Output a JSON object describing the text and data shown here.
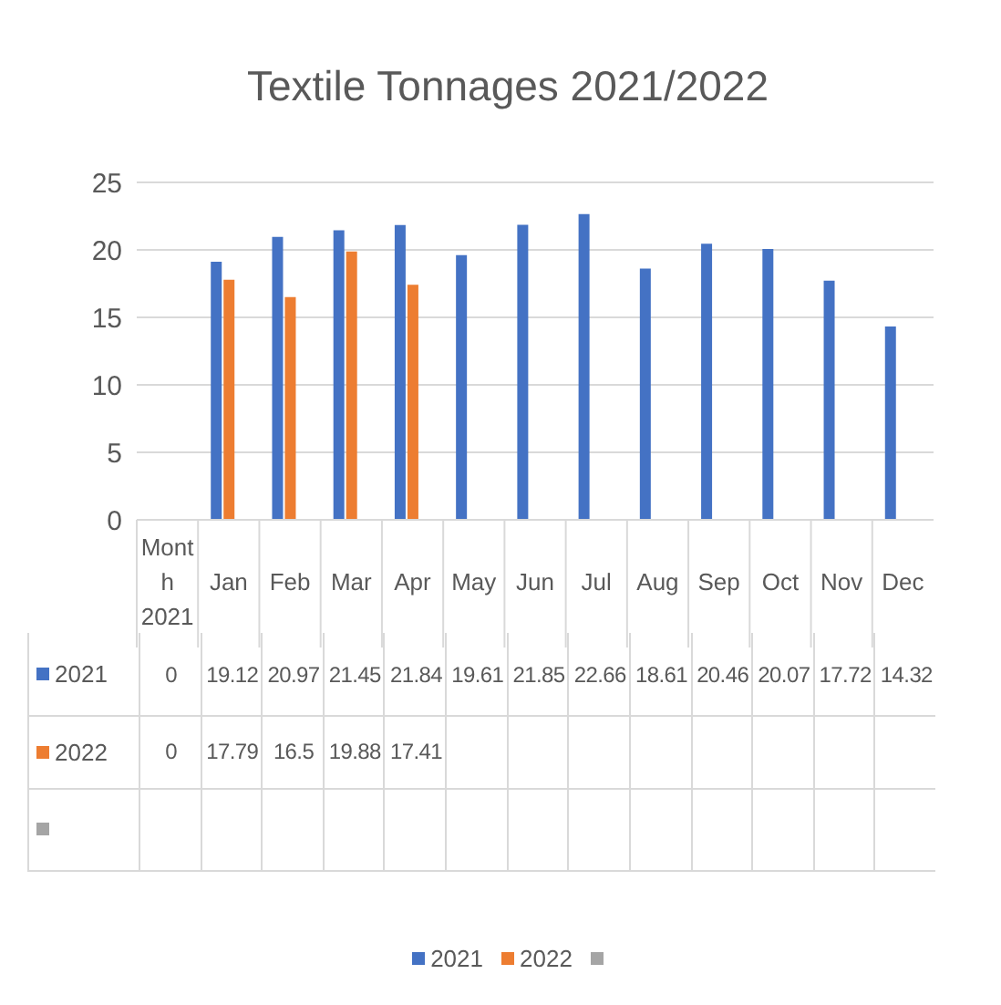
{
  "chart_data": {
    "type": "bar",
    "title": "Textile Tonnages 2021/2022",
    "categories": [
      "Month 2021",
      "Jan",
      "Feb",
      "Mar",
      "Apr",
      "May",
      "Jun",
      "Jul",
      "Aug",
      "Sep",
      "Oct",
      "Nov",
      "Dec"
    ],
    "series": [
      {
        "name": "2021",
        "color": "#4472c4",
        "values": [
          0,
          19.12,
          20.97,
          21.45,
          21.84,
          19.61,
          21.85,
          22.66,
          18.61,
          20.46,
          20.07,
          17.72,
          14.32
        ]
      },
      {
        "name": "2022",
        "color": "#ed7d31",
        "values": [
          0,
          17.79,
          16.5,
          19.88,
          17.41,
          null,
          null,
          null,
          null,
          null,
          null,
          null,
          null
        ]
      },
      {
        "color": "#a5a5a5",
        "values": [
          null,
          null,
          null,
          null,
          null,
          null,
          null,
          null,
          null,
          null,
          null,
          null,
          null
        ]
      }
    ],
    "ylim": [
      0,
      25
    ],
    "yticks": [
      0,
      5,
      10,
      15,
      20,
      25
    ],
    "grid": "y",
    "legend": "bottom",
    "data_labels": true
  }
}
